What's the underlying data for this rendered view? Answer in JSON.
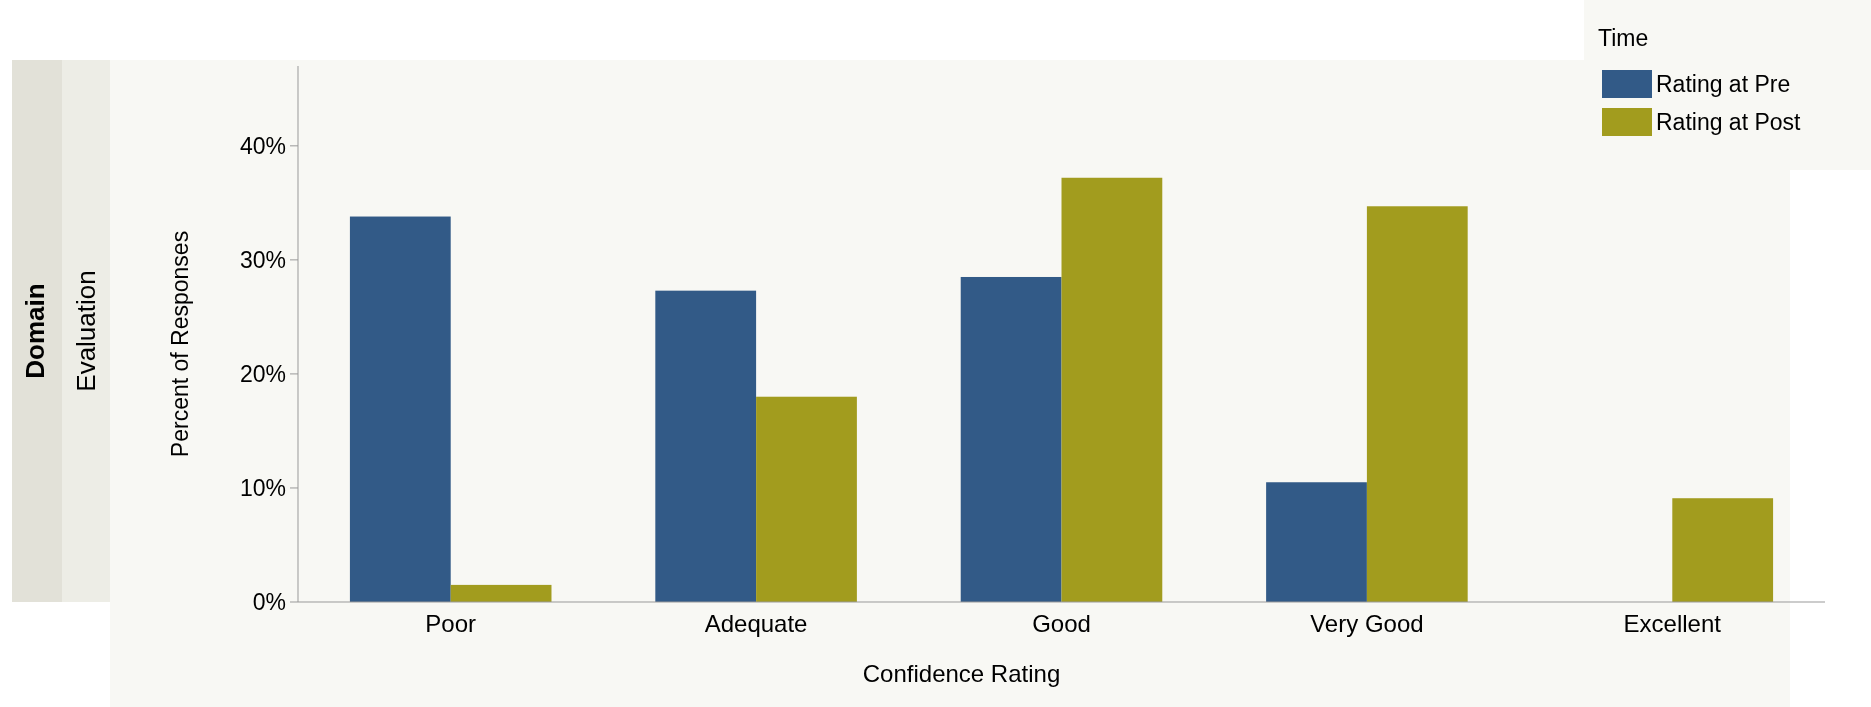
{
  "chart_data": {
    "type": "bar",
    "xlabel": "Confidence Rating",
    "ylabel": "Percent of Responses",
    "legend_title": "Time",
    "annotations": [
      "Domain",
      "Evaluation"
    ],
    "categories": [
      "Poor",
      "Adequate",
      "Good",
      "Very Good",
      "Excellent"
    ],
    "series": [
      {
        "name": "Rating at Pre",
        "color": "#325a87",
        "values": [
          33.8,
          27.3,
          28.5,
          10.5,
          null
        ]
      },
      {
        "name": "Rating at Post",
        "color": "#a29c1e",
        "values": [
          1.5,
          18.0,
          37.2,
          34.7,
          9.1
        ]
      }
    ],
    "ylim": [
      0,
      47
    ],
    "yticks": [
      {
        "value": 0,
        "label": "0%"
      },
      {
        "value": 10,
        "label": "10%"
      },
      {
        "value": 20,
        "label": "20%"
      },
      {
        "value": 30,
        "label": "30%"
      },
      {
        "value": 40,
        "label": "40%"
      }
    ],
    "grid": false,
    "legend": "top right"
  }
}
